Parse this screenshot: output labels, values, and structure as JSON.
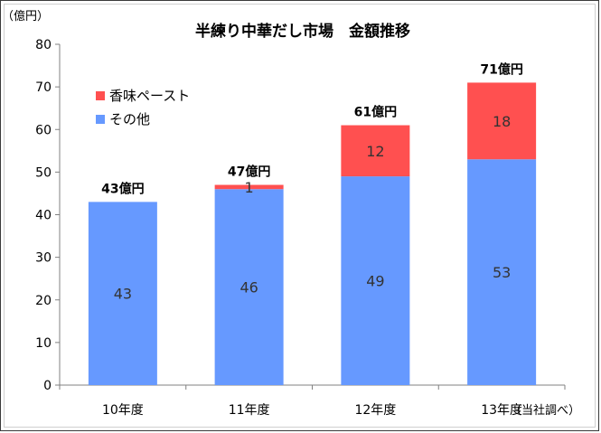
{
  "chart_data": {
    "type": "bar",
    "stacked": true,
    "title": "半練り中華だし市場　金額推移",
    "y_unit_label": "（億円）",
    "source_note": "（当社調べ）",
    "categories": [
      "10年度",
      "11年度",
      "12年度",
      "13年度"
    ],
    "ylim": [
      0,
      80
    ],
    "yticks": [
      0,
      10,
      20,
      30,
      40,
      50,
      60,
      70,
      80
    ],
    "grid": false,
    "legend_position": "top-left",
    "series": [
      {
        "name": "その他",
        "values": [
          43,
          46,
          49,
          53
        ],
        "color": "#6699ff"
      },
      {
        "name": "香味ペースト",
        "values": [
          0,
          1,
          12,
          18
        ],
        "color": "#ff5050"
      }
    ],
    "totals": [
      "43億円",
      "47億円",
      "61億円",
      "71億円"
    ],
    "legend_order": [
      "香味ペースト",
      "その他"
    ]
  }
}
